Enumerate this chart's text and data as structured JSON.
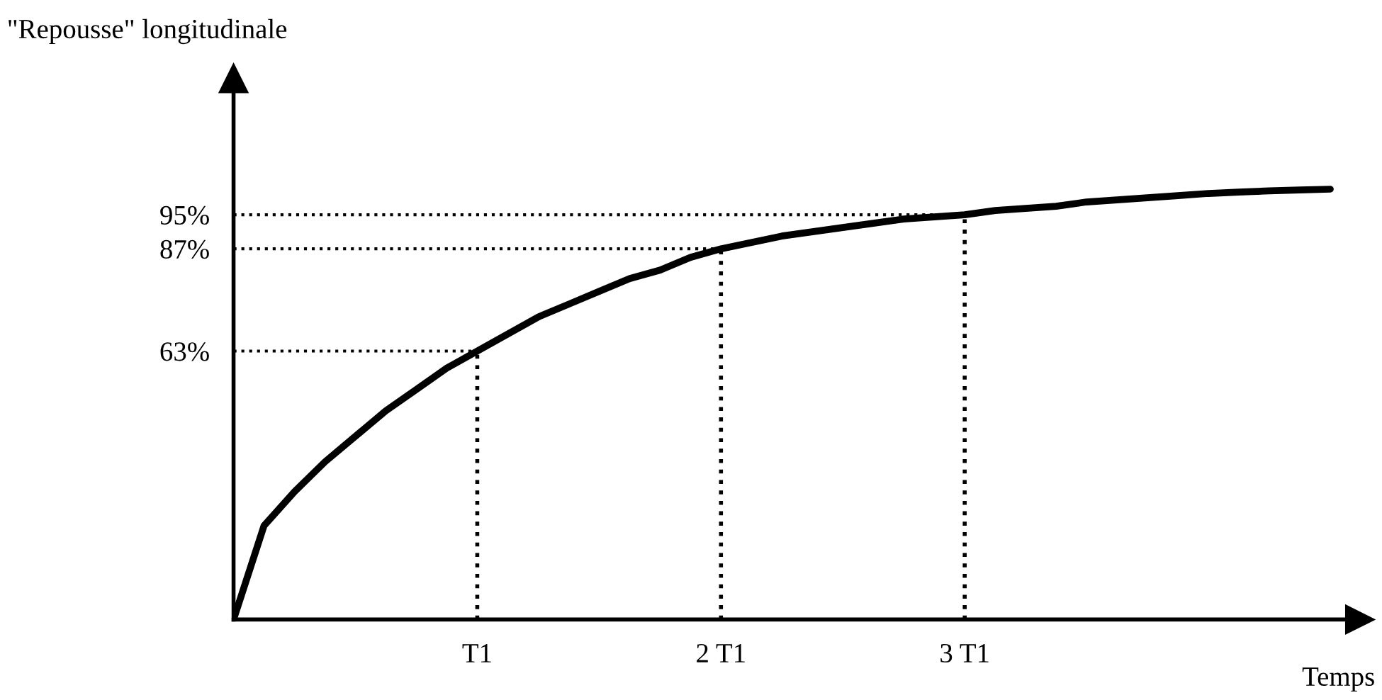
{
  "chart_data": {
    "type": "line",
    "ylabel": "\"Repousse\" longitudinale",
    "xlabel": "Temps",
    "categories": [
      null,
      null,
      null,
      null,
      null,
      null,
      null,
      null,
      "T1",
      null,
      null,
      null,
      null,
      null,
      null,
      null,
      "2 T1",
      null,
      null,
      null,
      null,
      null,
      null,
      null,
      "3 T1",
      null,
      null,
      null,
      null,
      null,
      null,
      null,
      null,
      null,
      null,
      null,
      null
    ],
    "series": [
      {
        "color": "#000000",
        "values": [
          0,
          22,
          30,
          37,
          43,
          49,
          54,
          59,
          63,
          67,
          71,
          74,
          77,
          80,
          82,
          85,
          87,
          88.5,
          90,
          91,
          92,
          93,
          94,
          94.5,
          95,
          96,
          96.5,
          97,
          98,
          98.5,
          99,
          99.5,
          100,
          100.3,
          100.6,
          100.8,
          101
        ]
      }
    ],
    "ylim": [
      0,
      127
    ],
    "yticks": [
      {
        "value": 63,
        "label": "63%"
      },
      {
        "value": 87,
        "label": "87%"
      },
      {
        "value": 95,
        "label": "95%"
      }
    ],
    "ref_lines": [
      {
        "axis": "x",
        "value": "T1",
        "line_style": "dotted",
        "color": "#000000"
      },
      {
        "axis": "x",
        "value": "2 T1",
        "line_style": "dotted",
        "color": "#000000"
      },
      {
        "axis": "x",
        "value": "3 T1",
        "line_style": "dotted",
        "color": "#000000"
      },
      {
        "axis": "y",
        "value": 63,
        "line_style": "dotted",
        "color": "#000000"
      },
      {
        "axis": "y",
        "value": 87,
        "line_style": "dotted",
        "color": "#000000"
      },
      {
        "axis": "y",
        "value": 95,
        "line_style": "dotted",
        "color": "#000000"
      }
    ],
    "grid": false,
    "marker": "none",
    "line_style": "solid"
  }
}
